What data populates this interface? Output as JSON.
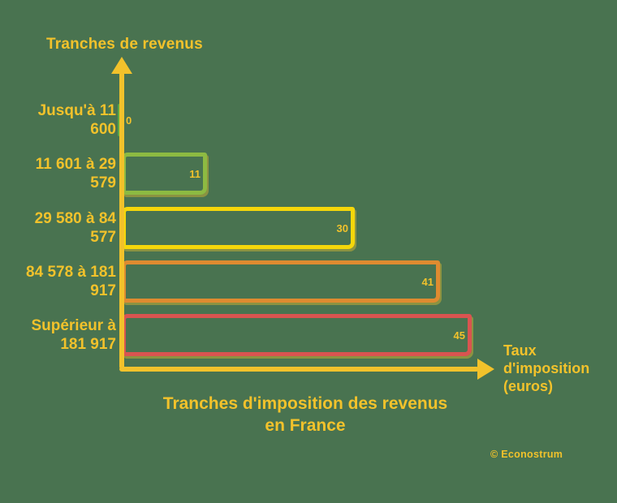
{
  "colors": {
    "background": "#497350",
    "gold": "#F2C22B"
  },
  "axis": {
    "y_label": "Tranches de revenus",
    "x_label": "Taux\nd'imposition\n(euros)"
  },
  "title": "Tranches d'imposition des revenus\nen France",
  "credit": "© Econostrum",
  "chart_data": {
    "type": "bar",
    "orientation": "horizontal",
    "title": "Tranches d'imposition des revenus en France",
    "xlabel": "Taux d'imposition (euros)",
    "ylabel": "Tranches de revenus",
    "categories": [
      "Jusqu'à 11 600",
      "11 601 à 29 579",
      "29 580 à 84 577",
      "84 578 à 181 917",
      "Supérieur à 181 917"
    ],
    "category_label_lines": [
      [
        "Jusqu'à 11",
        "600"
      ],
      [
        "11 601 à 29",
        "579"
      ],
      [
        "29 580 à 84",
        "577"
      ],
      [
        "84 578 à 181",
        "917"
      ],
      [
        "Supérieur à",
        "181 917"
      ]
    ],
    "values": [
      0,
      11,
      30,
      41,
      45
    ],
    "bar_colors": [
      "#5BA745",
      "#8DBA42",
      "#F5D70A",
      "#DE8B30",
      "#D95450"
    ],
    "value_label_color": "#F2C22B",
    "xlim": [
      0,
      48
    ],
    "grid": false,
    "legend": false,
    "value_labels_shown": true
  }
}
